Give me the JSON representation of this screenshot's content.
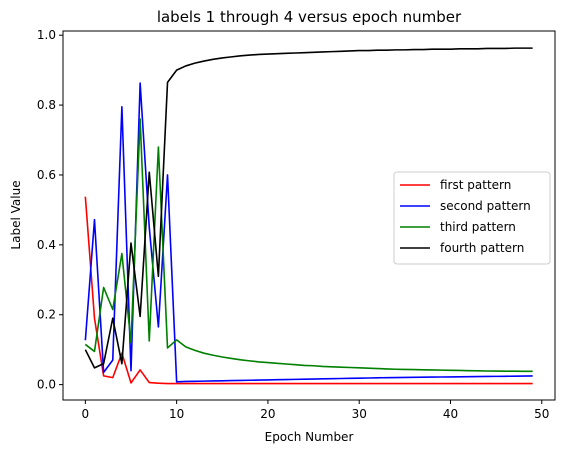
{
  "chart_data": {
    "type": "line",
    "title": "labels 1 through 4 versus epoch number",
    "xlabel": "Epoch Number",
    "ylabel": "Label Value",
    "xlim": [
      -2.45,
      51.45
    ],
    "ylim": [
      -0.044,
      1.012
    ],
    "xticks": [
      0,
      10,
      20,
      30,
      40,
      50
    ],
    "yticks": [
      0.0,
      0.2,
      0.4,
      0.6,
      0.8,
      1.0
    ],
    "xtick_labels": [
      "0",
      "10",
      "20",
      "30",
      "40",
      "50"
    ],
    "ytick_labels": [
      "0.0",
      "0.2",
      "0.4",
      "0.6",
      "0.8",
      "1.0"
    ],
    "grid": false,
    "legend_position": "center-right",
    "x": [
      0,
      1,
      2,
      3,
      4,
      5,
      6,
      7,
      8,
      9,
      10,
      11,
      12,
      13,
      14,
      15,
      16,
      17,
      18,
      19,
      20,
      21,
      22,
      23,
      24,
      25,
      26,
      27,
      28,
      29,
      30,
      31,
      32,
      33,
      34,
      35,
      36,
      37,
      38,
      39,
      40,
      41,
      42,
      43,
      44,
      45,
      46,
      47,
      48,
      49
    ],
    "series": [
      {
        "name": "first pattern",
        "color": "#ff0000",
        "values": [
          0.538,
          0.19,
          0.025,
          0.02,
          0.09,
          0.005,
          0.042,
          0.006,
          0.004,
          0.003,
          0.003,
          0.003,
          0.003,
          0.003,
          0.003,
          0.003,
          0.003,
          0.003,
          0.003,
          0.003,
          0.003,
          0.003,
          0.003,
          0.003,
          0.003,
          0.003,
          0.003,
          0.003,
          0.003,
          0.003,
          0.003,
          0.003,
          0.003,
          0.003,
          0.003,
          0.003,
          0.003,
          0.003,
          0.003,
          0.003,
          0.003,
          0.003,
          0.003,
          0.003,
          0.003,
          0.003,
          0.003,
          0.003,
          0.003,
          0.003
        ]
      },
      {
        "name": "second pattern",
        "color": "#0000ff",
        "values": [
          0.127,
          0.472,
          0.035,
          0.07,
          0.795,
          0.04,
          0.863,
          0.45,
          0.165,
          0.6,
          0.008,
          0.009,
          0.0095,
          0.01,
          0.0105,
          0.011,
          0.0115,
          0.012,
          0.0125,
          0.013,
          0.0135,
          0.014,
          0.0145,
          0.015,
          0.0155,
          0.016,
          0.0165,
          0.017,
          0.0175,
          0.018,
          0.0185,
          0.019,
          0.0195,
          0.02,
          0.0203,
          0.0206,
          0.0209,
          0.0212,
          0.0215,
          0.0218,
          0.0221,
          0.0224,
          0.0227,
          0.023,
          0.0233,
          0.0236,
          0.0239,
          0.0242,
          0.0245,
          0.025
        ]
      },
      {
        "name": "third pattern",
        "color": "#008000",
        "values": [
          0.115,
          0.095,
          0.278,
          0.215,
          0.375,
          0.12,
          0.76,
          0.125,
          0.68,
          0.105,
          0.128,
          0.108,
          0.098,
          0.09,
          0.084,
          0.079,
          0.075,
          0.071,
          0.068,
          0.065,
          0.063,
          0.061,
          0.059,
          0.057,
          0.055,
          0.054,
          0.052,
          0.051,
          0.05,
          0.049,
          0.048,
          0.047,
          0.046,
          0.045,
          0.044,
          0.0435,
          0.043,
          0.0425,
          0.042,
          0.0415,
          0.041,
          0.0405,
          0.04,
          0.0395,
          0.039,
          0.0388,
          0.0386,
          0.0384,
          0.0382,
          0.038
        ]
      },
      {
        "name": "fourth pattern",
        "color": "#000000",
        "values": [
          0.1,
          0.048,
          0.06,
          0.19,
          0.06,
          0.405,
          0.195,
          0.608,
          0.31,
          0.865,
          0.9,
          0.912,
          0.92,
          0.926,
          0.931,
          0.935,
          0.938,
          0.941,
          0.943,
          0.945,
          0.946,
          0.947,
          0.948,
          0.949,
          0.95,
          0.951,
          0.952,
          0.953,
          0.954,
          0.955,
          0.956,
          0.956,
          0.957,
          0.957,
          0.958,
          0.958,
          0.959,
          0.959,
          0.96,
          0.96,
          0.96,
          0.961,
          0.961,
          0.961,
          0.962,
          0.962,
          0.962,
          0.963,
          0.963,
          0.963
        ]
      }
    ]
  }
}
